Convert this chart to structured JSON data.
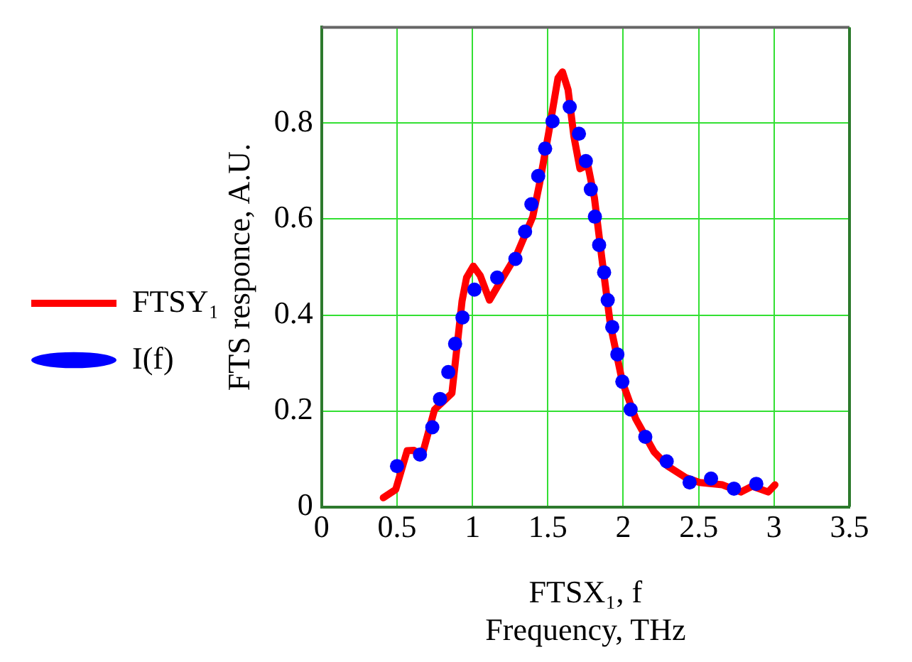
{
  "chart_data": {
    "type": "line",
    "xlabel": "FTSX₁, f\nFrequency, THz",
    "ylabel": "FTS responce, A.U.",
    "xlim": [
      0,
      3.5
    ],
    "xticks": [
      0,
      0.5,
      1,
      1.5,
      2,
      2.5,
      3,
      3.5
    ],
    "ylim": [
      0,
      1
    ],
    "yticks": [
      0,
      0.2,
      0.4,
      0.6,
      0.8
    ],
    "grid": true,
    "legend": "left",
    "series": [
      {
        "name": "FTSY₁",
        "type": "line",
        "color": "#ff0000",
        "line_style": "solid",
        "marker": "none",
        "x": [
          0.409,
          0.491,
          0.567,
          0.612,
          0.664,
          0.749,
          0.864,
          0.931,
          0.961,
          1.006,
          1.052,
          1.113,
          1.173,
          1.295,
          1.4,
          1.445,
          1.506,
          1.567,
          1.597,
          1.634,
          1.673,
          1.713,
          1.765,
          1.809,
          1.855,
          1.915,
          1.994,
          2.082,
          2.204,
          2.295,
          2.415,
          2.506,
          2.658,
          2.779,
          2.855,
          2.961,
          3.006
        ],
        "values": [
          0.019,
          0.036,
          0.117,
          0.118,
          0.105,
          0.203,
          0.237,
          0.429,
          0.478,
          0.502,
          0.482,
          0.431,
          0.463,
          0.527,
          0.605,
          0.674,
          0.781,
          0.894,
          0.907,
          0.87,
          0.772,
          0.705,
          0.713,
          0.644,
          0.526,
          0.379,
          0.261,
          0.184,
          0.115,
          0.085,
          0.061,
          0.051,
          0.046,
          0.031,
          0.043,
          0.031,
          0.046
        ]
      },
      {
        "name": "I(f)",
        "type": "scatter",
        "color": "#0000ff",
        "marker": "circle",
        "x": [
          0.5,
          0.652,
          0.734,
          0.785,
          0.84,
          0.885,
          0.934,
          1.013,
          1.164,
          1.285,
          1.349,
          1.391,
          1.436,
          1.482,
          1.531,
          1.645,
          1.706,
          1.752,
          1.785,
          1.812,
          1.84,
          1.873,
          1.897,
          1.927,
          1.961,
          1.994,
          2.049,
          2.146,
          2.288,
          2.44,
          2.582,
          2.734,
          2.882
        ],
        "values": [
          0.085,
          0.109,
          0.166,
          0.225,
          0.281,
          0.34,
          0.395,
          0.453,
          0.478,
          0.517,
          0.574,
          0.631,
          0.69,
          0.747,
          0.804,
          0.834,
          0.778,
          0.721,
          0.662,
          0.605,
          0.546,
          0.489,
          0.431,
          0.375,
          0.318,
          0.261,
          0.203,
          0.146,
          0.095,
          0.051,
          0.059,
          0.038,
          0.048
        ]
      }
    ]
  }
}
